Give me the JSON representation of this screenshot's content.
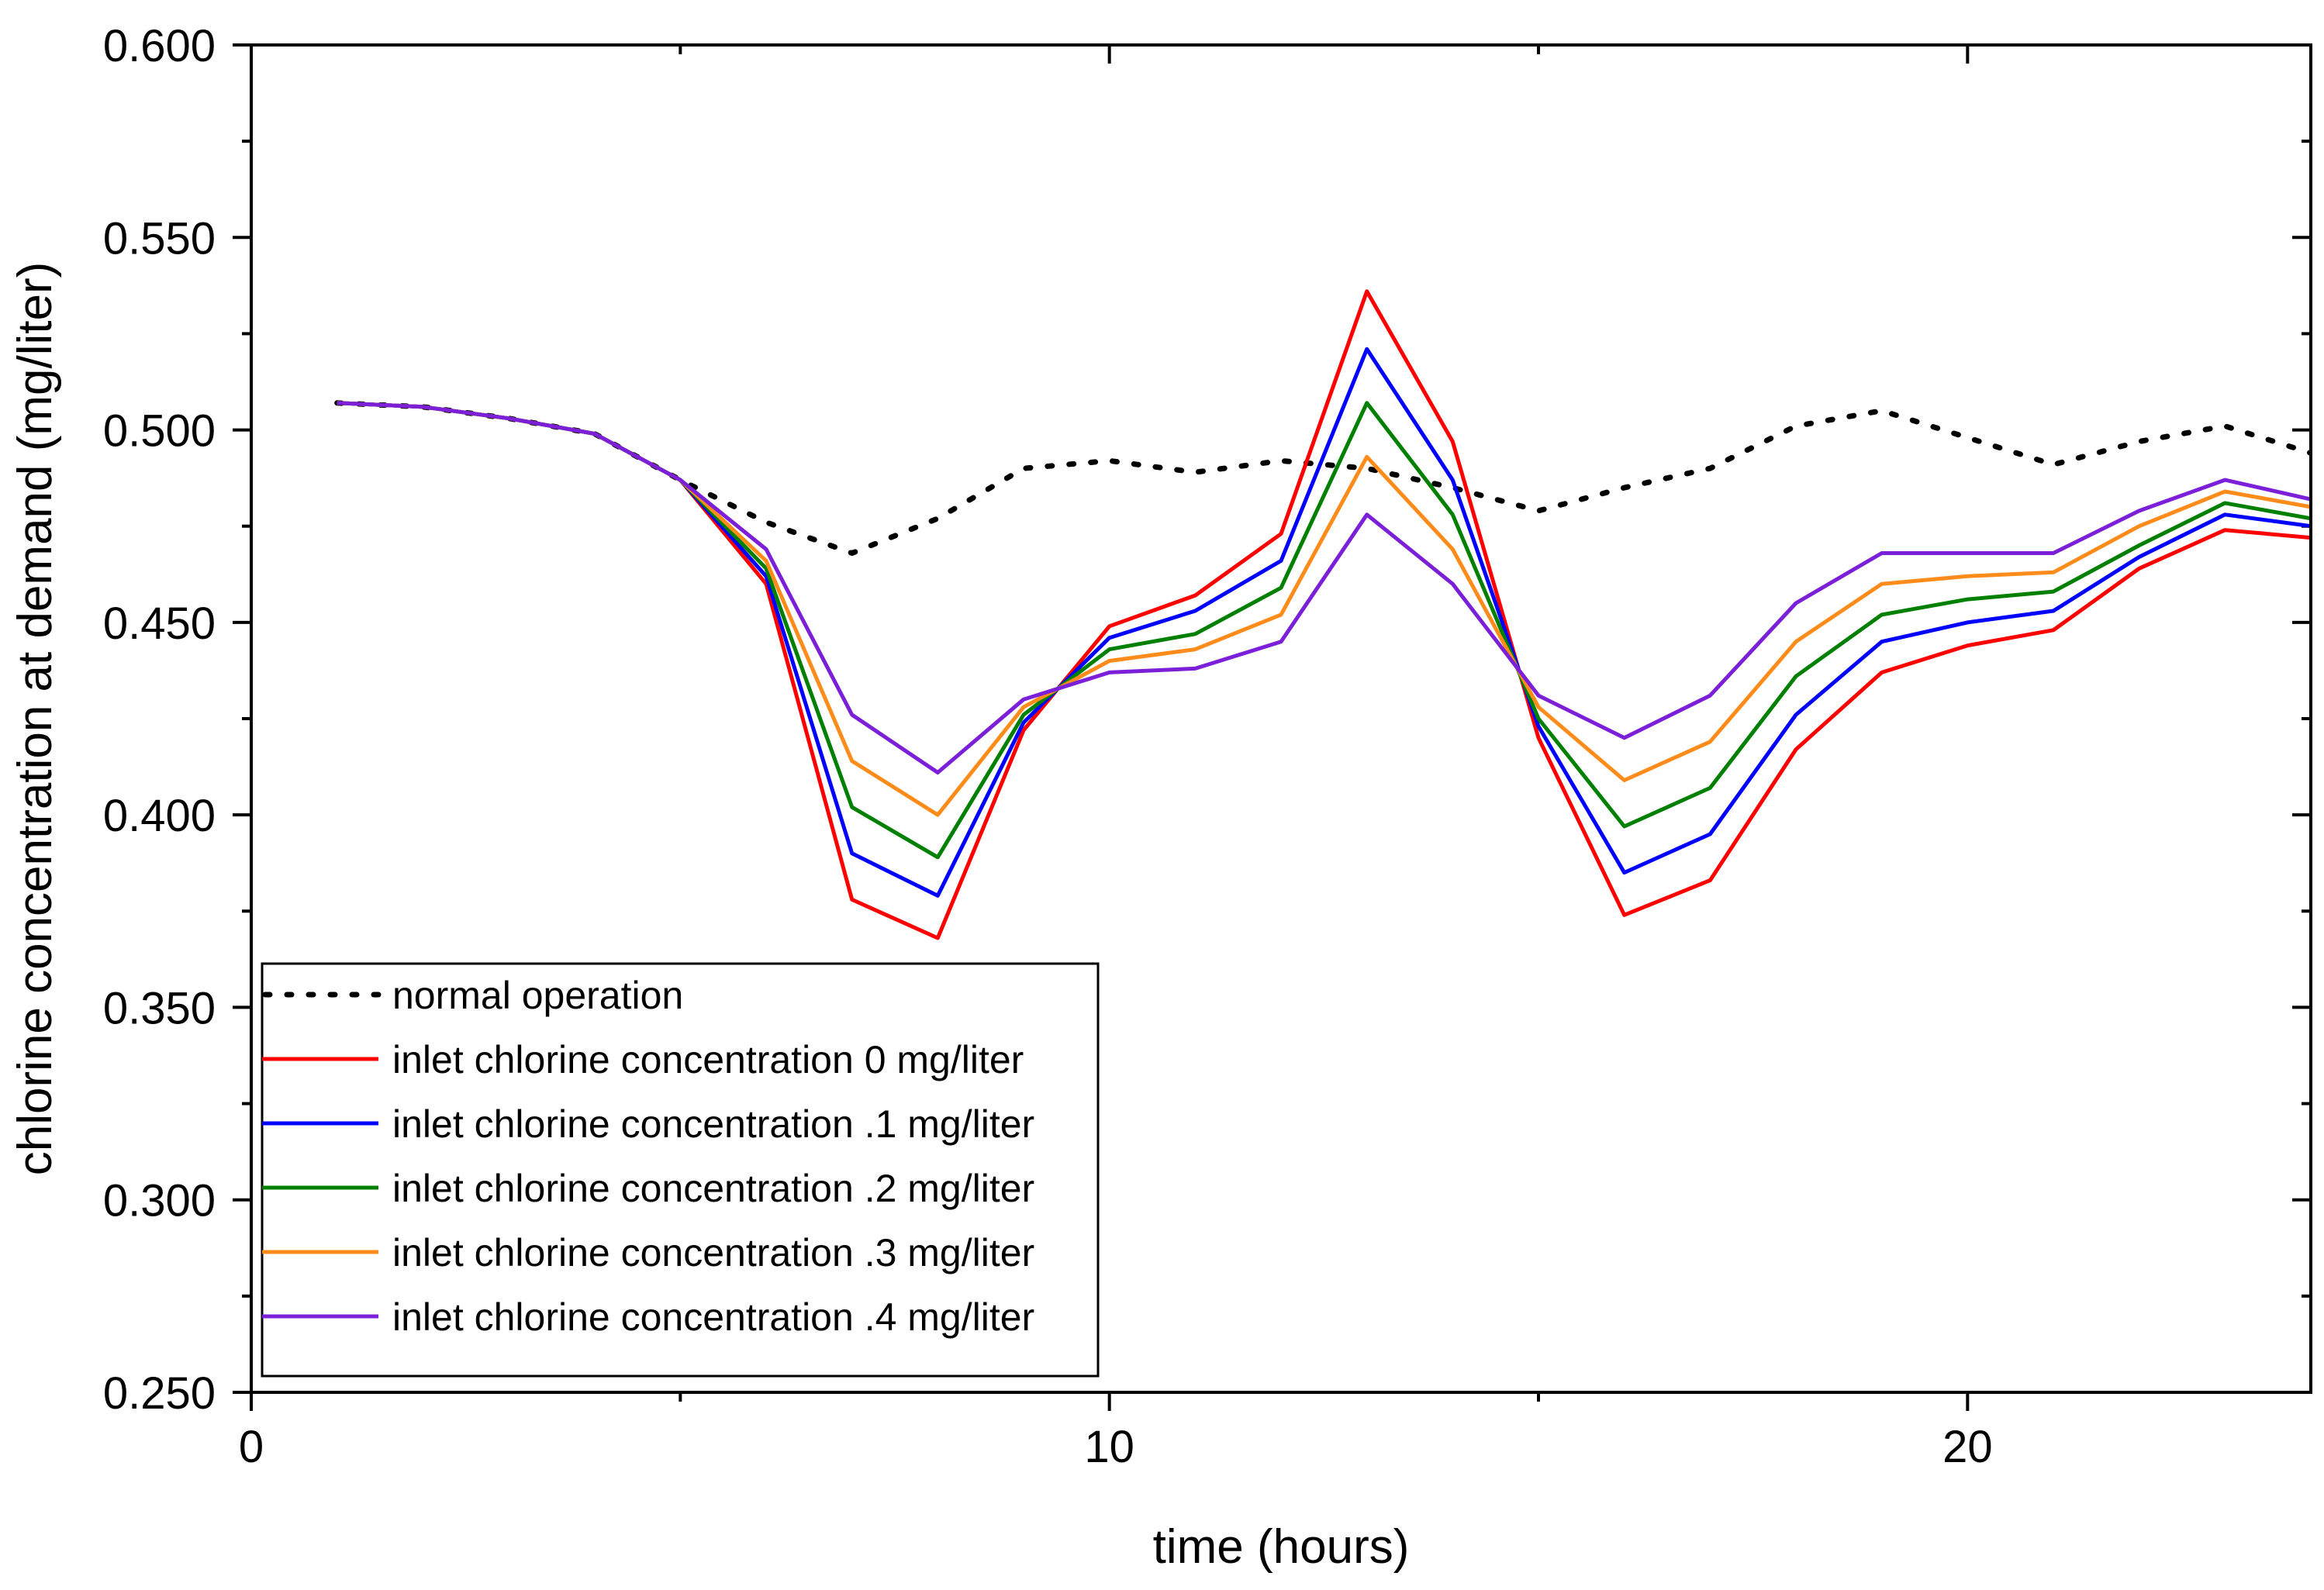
{
  "chart_data": {
    "type": "line",
    "title": "",
    "xlabel": "time (hours)",
    "ylabel": "chlorine concentration at demand (mg/liter)",
    "xlim": [
      0,
      24
    ],
    "ylim": [
      0.25,
      0.6
    ],
    "xticks": [
      0,
      10,
      20
    ],
    "xtick_labels": [
      "0",
      "10",
      "20"
    ],
    "yticks": [
      0.25,
      0.3,
      0.35,
      0.4,
      0.45,
      0.5,
      0.55,
      0.6
    ],
    "ytick_labels": [
      "0.250",
      "0.300",
      "0.350",
      "0.400",
      "0.450",
      "0.500",
      "0.550",
      "0.600"
    ],
    "grid": false,
    "legend_position": "bottom-left",
    "series": [
      {
        "name": "normal operation",
        "color": "#000000",
        "style": "dotted",
        "points": [
          [
            1,
            0.507
          ],
          [
            2,
            0.506
          ],
          [
            3,
            0.503
          ],
          [
            4,
            0.499
          ],
          [
            5,
            0.487
          ],
          [
            6,
            0.476
          ],
          [
            7,
            0.468
          ],
          [
            8,
            0.477
          ],
          [
            9,
            0.49
          ],
          [
            10,
            0.492
          ],
          [
            11,
            0.489
          ],
          [
            12,
            0.492
          ],
          [
            13,
            0.49
          ],
          [
            14,
            0.485
          ],
          [
            15,
            0.479
          ],
          [
            16,
            0.485
          ],
          [
            17,
            0.49
          ],
          [
            18,
            0.501
          ],
          [
            19,
            0.505
          ],
          [
            20,
            0.498
          ],
          [
            21,
            0.491
          ],
          [
            22,
            0.497
          ],
          [
            23,
            0.501
          ],
          [
            24,
            0.494
          ]
        ]
      },
      {
        "name": "inlet chlorine concentration 0 mg/liter",
        "color": "#ff0000",
        "style": "solid",
        "points": [
          [
            1,
            0.507
          ],
          [
            2,
            0.506
          ],
          [
            3,
            0.503
          ],
          [
            4,
            0.499
          ],
          [
            5,
            0.487
          ],
          [
            6,
            0.46
          ],
          [
            7,
            0.378
          ],
          [
            8,
            0.368
          ],
          [
            9,
            0.422
          ],
          [
            10,
            0.449
          ],
          [
            11,
            0.457
          ],
          [
            12,
            0.473
          ],
          [
            13,
            0.536
          ],
          [
            14,
            0.497
          ],
          [
            15,
            0.42
          ],
          [
            16,
            0.374
          ],
          [
            17,
            0.383
          ],
          [
            18,
            0.417
          ],
          [
            19,
            0.437
          ],
          [
            20,
            0.444
          ],
          [
            21,
            0.448
          ],
          [
            22,
            0.464
          ],
          [
            23,
            0.474
          ],
          [
            24,
            0.472
          ]
        ]
      },
      {
        "name": "inlet chlorine concentration .1 mg/liter",
        "color": "#0000ff",
        "style": "solid",
        "points": [
          [
            1,
            0.507
          ],
          [
            2,
            0.506
          ],
          [
            3,
            0.503
          ],
          [
            4,
            0.499
          ],
          [
            5,
            0.487
          ],
          [
            6,
            0.462
          ],
          [
            7,
            0.39
          ],
          [
            8,
            0.379
          ],
          [
            9,
            0.424
          ],
          [
            10,
            0.446
          ],
          [
            11,
            0.453
          ],
          [
            12,
            0.466
          ],
          [
            13,
            0.521
          ],
          [
            14,
            0.487
          ],
          [
            15,
            0.423
          ],
          [
            16,
            0.385
          ],
          [
            17,
            0.395
          ],
          [
            18,
            0.426
          ],
          [
            19,
            0.445
          ],
          [
            20,
            0.45
          ],
          [
            21,
            0.453
          ],
          [
            22,
            0.467
          ],
          [
            23,
            0.478
          ],
          [
            24,
            0.475
          ]
        ]
      },
      {
        "name": "inlet chlorine concentration .2 mg/liter",
        "color": "#008000",
        "style": "solid",
        "points": [
          [
            1,
            0.507
          ],
          [
            2,
            0.506
          ],
          [
            3,
            0.503
          ],
          [
            4,
            0.499
          ],
          [
            5,
            0.487
          ],
          [
            6,
            0.464
          ],
          [
            7,
            0.402
          ],
          [
            8,
            0.389
          ],
          [
            9,
            0.426
          ],
          [
            10,
            0.443
          ],
          [
            11,
            0.447
          ],
          [
            12,
            0.459
          ],
          [
            13,
            0.507
          ],
          [
            14,
            0.478
          ],
          [
            15,
            0.425
          ],
          [
            16,
            0.397
          ],
          [
            17,
            0.407
          ],
          [
            18,
            0.436
          ],
          [
            19,
            0.452
          ],
          [
            20,
            0.456
          ],
          [
            21,
            0.458
          ],
          [
            22,
            0.47
          ],
          [
            23,
            0.481
          ],
          [
            24,
            0.477
          ]
        ]
      },
      {
        "name": "inlet chlorine concentration .3 mg/liter",
        "color": "#ff8c1a",
        "style": "solid",
        "points": [
          [
            1,
            0.507
          ],
          [
            2,
            0.506
          ],
          [
            3,
            0.503
          ],
          [
            4,
            0.499
          ],
          [
            5,
            0.487
          ],
          [
            6,
            0.466
          ],
          [
            7,
            0.414
          ],
          [
            8,
            0.4
          ],
          [
            9,
            0.428
          ],
          [
            10,
            0.44
          ],
          [
            11,
            0.443
          ],
          [
            12,
            0.452
          ],
          [
            13,
            0.493
          ],
          [
            14,
            0.469
          ],
          [
            15,
            0.428
          ],
          [
            16,
            0.409
          ],
          [
            17,
            0.419
          ],
          [
            18,
            0.445
          ],
          [
            19,
            0.46
          ],
          [
            20,
            0.462
          ],
          [
            21,
            0.463
          ],
          [
            22,
            0.475
          ],
          [
            23,
            0.484
          ],
          [
            24,
            0.48
          ]
        ]
      },
      {
        "name": "inlet chlorine concentration .4 mg/liter",
        "color": "#7b1fd8",
        "style": "solid",
        "points": [
          [
            1,
            0.507
          ],
          [
            2,
            0.506
          ],
          [
            3,
            0.503
          ],
          [
            4,
            0.499
          ],
          [
            5,
            0.487
          ],
          [
            6,
            0.469
          ],
          [
            7,
            0.426
          ],
          [
            8,
            0.411
          ],
          [
            9,
            0.43
          ],
          [
            10,
            0.437
          ],
          [
            11,
            0.438
          ],
          [
            12,
            0.445
          ],
          [
            13,
            0.478
          ],
          [
            14,
            0.46
          ],
          [
            15,
            0.431
          ],
          [
            16,
            0.42
          ],
          [
            17,
            0.431
          ],
          [
            18,
            0.455
          ],
          [
            19,
            0.468
          ],
          [
            20,
            0.468
          ],
          [
            21,
            0.468
          ],
          [
            22,
            0.479
          ],
          [
            23,
            0.487
          ],
          [
            24,
            0.482
          ]
        ]
      }
    ]
  }
}
